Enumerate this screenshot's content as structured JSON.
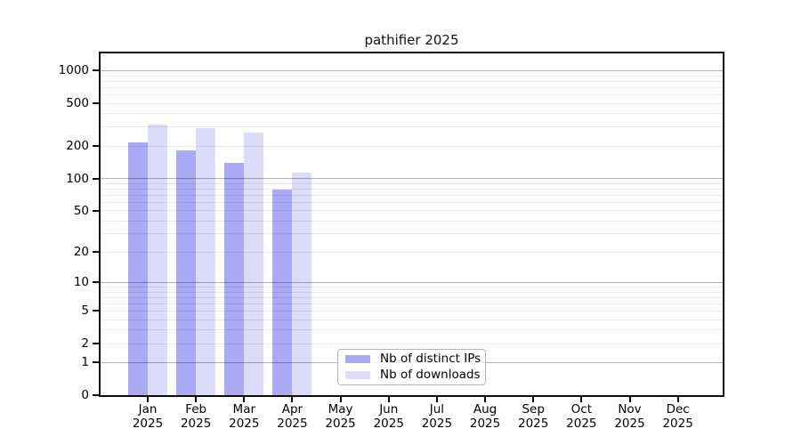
{
  "chart_data": {
    "type": "bar",
    "title": "pathifier 2025",
    "x_categories": [
      "Jan 2025",
      "Feb 2025",
      "Mar 2025",
      "Apr 2025",
      "May 2025",
      "Jun 2025",
      "Jul 2025",
      "Aug 2025",
      "Sep 2025",
      "Oct 2025",
      "Nov 2025",
      "Dec 2025"
    ],
    "series": [
      {
        "name": "Nb of distinct IPs",
        "color": "#a9a9f5",
        "values": [
          217,
          182,
          140,
          78,
          null,
          null,
          null,
          null,
          null,
          null,
          null,
          null
        ]
      },
      {
        "name": "Nb of downloads",
        "color": "#dcdcfa",
        "values": [
          317,
          292,
          266,
          113,
          null,
          null,
          null,
          null,
          null,
          null,
          null,
          null
        ]
      }
    ],
    "yscale": "log1p",
    "ylim": [
      0,
      1400
    ],
    "y_ticks": [
      0,
      1,
      2,
      5,
      10,
      20,
      50,
      100,
      200,
      500,
      1000
    ],
    "grid": {
      "major_at": [
        1,
        10,
        100,
        1000
      ],
      "minor": "2-9 within each decade",
      "drawn_over_bars": true
    },
    "legend_position": "lower center",
    "colors": {
      "major_grid": "rgba(0,0,0,0.30)",
      "minor_grid": "rgba(0,0,0,0.085)",
      "spine": "#0a0a0a",
      "background": "#ffffff"
    }
  }
}
